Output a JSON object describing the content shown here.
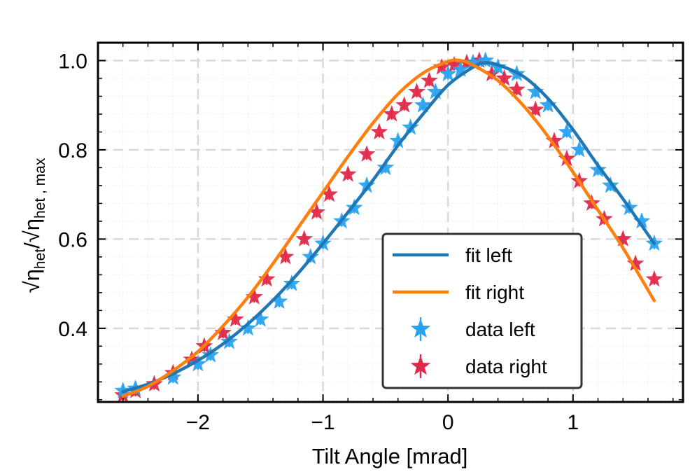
{
  "chart_data": {
    "type": "line",
    "xlabel": "Tilt Angle [mrad]",
    "ylabel": "√η_het / √η_het,max",
    "xlim": [
      -2.8,
      1.88
    ],
    "ylim": [
      0.235,
      1.04
    ],
    "xticks": [
      -2,
      -1,
      0,
      1
    ],
    "xtick_labels": [
      "−2",
      "−1",
      "0",
      "1"
    ],
    "yticks": [
      0.4,
      0.6,
      0.8,
      1.0
    ],
    "ytick_labels": [
      "0.4",
      "0.6",
      "0.8",
      "1.0"
    ],
    "grid": true,
    "legend_position": "lower-right",
    "series": [
      {
        "name": "fit left",
        "kind": "line",
        "color": "#1f77b4",
        "x": [
          -2.6,
          -2.4,
          -2.2,
          -2.0,
          -1.8,
          -1.6,
          -1.4,
          -1.2,
          -1.0,
          -0.8,
          -0.6,
          -0.4,
          -0.2,
          0.0,
          0.2,
          0.3,
          0.4,
          0.6,
          0.8,
          1.0,
          1.2,
          1.4,
          1.65
        ],
        "y": [
          0.258,
          0.275,
          0.298,
          0.328,
          0.365,
          0.41,
          0.463,
          0.523,
          0.59,
          0.66,
          0.732,
          0.81,
          0.88,
          0.945,
          0.985,
          0.995,
          0.99,
          0.965,
          0.915,
          0.845,
          0.765,
          0.69,
          0.59
        ]
      },
      {
        "name": "fit right",
        "kind": "line",
        "color": "#ff7f0e",
        "x": [
          -2.6,
          -2.4,
          -2.2,
          -2.0,
          -1.8,
          -1.6,
          -1.4,
          -1.2,
          -1.0,
          -0.8,
          -0.6,
          -0.4,
          -0.2,
          0.0,
          0.1,
          0.2,
          0.4,
          0.6,
          0.8,
          1.0,
          1.2,
          1.4,
          1.65
        ],
        "y": [
          0.248,
          0.27,
          0.305,
          0.348,
          0.405,
          0.47,
          0.545,
          0.625,
          0.705,
          0.785,
          0.86,
          0.925,
          0.972,
          0.998,
          1.0,
          0.99,
          0.955,
          0.9,
          0.83,
          0.75,
          0.665,
          0.58,
          0.462
        ]
      },
      {
        "name": "data left",
        "kind": "marker",
        "color": "#29a3f0",
        "x": [
          -2.6,
          -2.5,
          -2.2,
          -2.0,
          -1.9,
          -1.75,
          -1.6,
          -1.5,
          -1.35,
          -1.25,
          -1.1,
          -1.0,
          -0.85,
          -0.75,
          -0.65,
          -0.5,
          -0.4,
          -0.3,
          -0.2,
          -0.1,
          0.0,
          0.1,
          0.2,
          0.3,
          0.4,
          0.55,
          0.7,
          0.8,
          0.95,
          1.05,
          1.2,
          1.3,
          1.45,
          1.55,
          1.65
        ],
        "y": [
          0.26,
          0.265,
          0.29,
          0.32,
          0.34,
          0.37,
          0.4,
          0.42,
          0.46,
          0.5,
          0.56,
          0.59,
          0.64,
          0.67,
          0.72,
          0.76,
          0.82,
          0.85,
          0.9,
          0.93,
          0.97,
          0.98,
          0.995,
          1.0,
          0.985,
          0.97,
          0.93,
          0.9,
          0.84,
          0.8,
          0.755,
          0.72,
          0.67,
          0.64,
          0.59
        ]
      },
      {
        "name": "data right",
        "kind": "marker",
        "color": "#e0294a",
        "x": [
          -2.6,
          -2.5,
          -2.35,
          -2.2,
          -2.05,
          -1.95,
          -1.8,
          -1.7,
          -1.55,
          -1.45,
          -1.3,
          -1.15,
          -1.05,
          -0.95,
          -0.8,
          -0.65,
          -0.55,
          -0.45,
          -0.35,
          -0.25,
          -0.15,
          -0.05,
          0.05,
          0.15,
          0.25,
          0.35,
          0.45,
          0.55,
          0.7,
          0.85,
          0.95,
          1.05,
          1.15,
          1.25,
          1.4,
          1.5,
          1.65
        ],
        "y": [
          0.25,
          0.26,
          0.275,
          0.3,
          0.33,
          0.36,
          0.39,
          0.42,
          0.47,
          0.51,
          0.56,
          0.6,
          0.66,
          0.7,
          0.745,
          0.79,
          0.84,
          0.88,
          0.9,
          0.93,
          0.955,
          0.985,
          0.99,
          0.995,
          1.0,
          0.97,
          0.96,
          0.935,
          0.89,
          0.82,
          0.78,
          0.73,
          0.68,
          0.645,
          0.6,
          0.545,
          0.51
        ]
      }
    ]
  }
}
